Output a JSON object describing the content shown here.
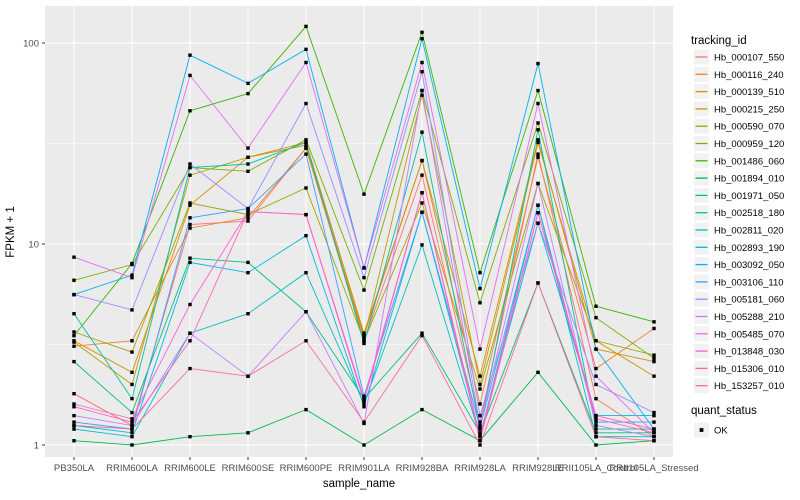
{
  "chart_data": {
    "type": "line",
    "title": "",
    "xlabel": "sample_name",
    "ylabel": "FPKM + 1",
    "y_scale": "log10",
    "y_ticks": [
      1,
      10,
      100
    ],
    "y_minor_ticks": [
      3.1623,
      31.623
    ],
    "ylim": [
      1,
      150
    ],
    "grid": "on",
    "panel_bg": "#EBEBEB",
    "grid_color": "#FFFFFF",
    "point_color": "#000000",
    "point_shape": "square",
    "legend_position": "right",
    "legend_title": "tracking_id",
    "legend2_title": "quant_status",
    "legend2_items": [
      {
        "label": "OK",
        "marker": "black-square"
      }
    ],
    "categories": [
      "PB350LA",
      "RRIM600LA",
      "RRIM600LE",
      "RRIM600SE",
      "RRIM600PE",
      "RRIM901LA",
      "RRIM928BA",
      "RRIM928LA",
      "RRIM928LE",
      "RRII105LA_Control",
      "RRII105LA_Stressed"
    ],
    "series": [
      {
        "name": "Hb_000107_550",
        "color": "#F8766D",
        "values": [
          1.8,
          1.25,
          12.5,
          13,
          30,
          3.3,
          22,
          1.3,
          28,
          1.7,
          1.1
        ]
      },
      {
        "name": "Hb_000116_240",
        "color": "#EA8331",
        "values": [
          3.1,
          3.3,
          12,
          13.5,
          30,
          3.5,
          26,
          1.6,
          27,
          2.4,
          3.8
        ]
      },
      {
        "name": "Hb_000139_510",
        "color": "#D89000",
        "values": [
          3.3,
          2.3,
          15.6,
          27,
          32,
          3.6,
          26,
          2.2,
          33,
          3.0,
          2.6
        ]
      },
      {
        "name": "Hb_000215_250",
        "color": "#C09B00",
        "values": [
          3.25,
          2.0,
          22,
          27,
          31,
          3.4,
          55,
          2.0,
          32,
          3.3,
          2.2
        ]
      },
      {
        "name": "Hb_000590_070",
        "color": "#A3A500",
        "values": [
          3.65,
          2.9,
          16,
          14,
          19,
          3.3,
          16,
          1.9,
          20,
          3.3,
          2.8
        ]
      },
      {
        "name": "Hb_000959_120",
        "color": "#7CAE00",
        "values": [
          6.6,
          7.9,
          24,
          23,
          33,
          5.9,
          58,
          5.1,
          40,
          4.3,
          2.7
        ]
      },
      {
        "name": "Hb_001486_060",
        "color": "#39B600",
        "values": [
          3.5,
          8.0,
          46,
          56,
          121,
          17.7,
          113,
          7.2,
          58,
          4.9,
          4.1
        ]
      },
      {
        "name": "Hb_001894_010",
        "color": "#00BB4E",
        "values": [
          1.05,
          1.0,
          1.1,
          1.15,
          1.5,
          1.0,
          1.5,
          1.05,
          2.3,
          1.0,
          1.05
        ]
      },
      {
        "name": "Hb_001971_050",
        "color": "#00BF7D",
        "values": [
          2.6,
          1.45,
          8.5,
          8.1,
          4.6,
          1.7,
          3.6,
          1.15,
          6.4,
          1.15,
          1.15
        ]
      },
      {
        "name": "Hb_002518_180",
        "color": "#00C1A3",
        "values": [
          4.5,
          1.7,
          24,
          25,
          32,
          3.2,
          36,
          1.2,
          37,
          1.2,
          1.2
        ]
      },
      {
        "name": "Hb_002811_020",
        "color": "#00BFC4",
        "values": [
          1.2,
          1.1,
          3.6,
          4.5,
          7.2,
          1.6,
          9.9,
          1.1,
          15.6,
          1.1,
          1.1
        ]
      },
      {
        "name": "Hb_002893_190",
        "color": "#00BAE0",
        "values": [
          1.25,
          1.15,
          8.1,
          7.2,
          11,
          1.55,
          14.4,
          1.12,
          12.7,
          1.4,
          1.4
        ]
      },
      {
        "name": "Hb_003092_050",
        "color": "#00B0F6",
        "values": [
          5.6,
          7.0,
          87,
          63,
          93,
          7.6,
          105,
          6.0,
          79,
          3.0,
          1.2
        ]
      },
      {
        "name": "Hb_003106_110",
        "color": "#35A2FF",
        "values": [
          1.3,
          1.2,
          13.5,
          15,
          28,
          1.75,
          14.4,
          1.22,
          15.6,
          1.3,
          1.3
        ]
      },
      {
        "name": "Hb_005181_060",
        "color": "#9590FF",
        "values": [
          5.6,
          4.7,
          25,
          15,
          50,
          6.8,
          72,
          1.4,
          12.7,
          2.0,
          1.45
        ]
      },
      {
        "name": "Hb_005288_210",
        "color": "#C77CFF",
        "values": [
          1.4,
          1.25,
          3.6,
          2.2,
          4.6,
          1.28,
          58,
          1.25,
          20,
          1.25,
          1.1
        ]
      },
      {
        "name": "Hb_005485_070",
        "color": "#E76BF3",
        "values": [
          8.6,
          6.8,
          69,
          30,
          80,
          7.6,
          80,
          3.0,
          50,
          2.2,
          1.15
        ]
      },
      {
        "name": "Hb_013848_030",
        "color": "#FA62DB",
        "values": [
          1.6,
          1.35,
          5.0,
          14.5,
          14,
          1.7,
          18,
          1.1,
          14.3,
          1.4,
          1.2
        ]
      },
      {
        "name": "Hb_015306_010",
        "color": "#FF62BC",
        "values": [
          1.55,
          1.3,
          3.3,
          14.5,
          14,
          1.65,
          18,
          1.05,
          14.3,
          1.35,
          1.15
        ]
      },
      {
        "name": "Hb_153257_010",
        "color": "#FF6A98",
        "values": [
          1.25,
          1.2,
          2.4,
          2.2,
          3.3,
          1.3,
          3.5,
          1.0,
          6.4,
          1.1,
          1.05
        ]
      }
    ]
  }
}
